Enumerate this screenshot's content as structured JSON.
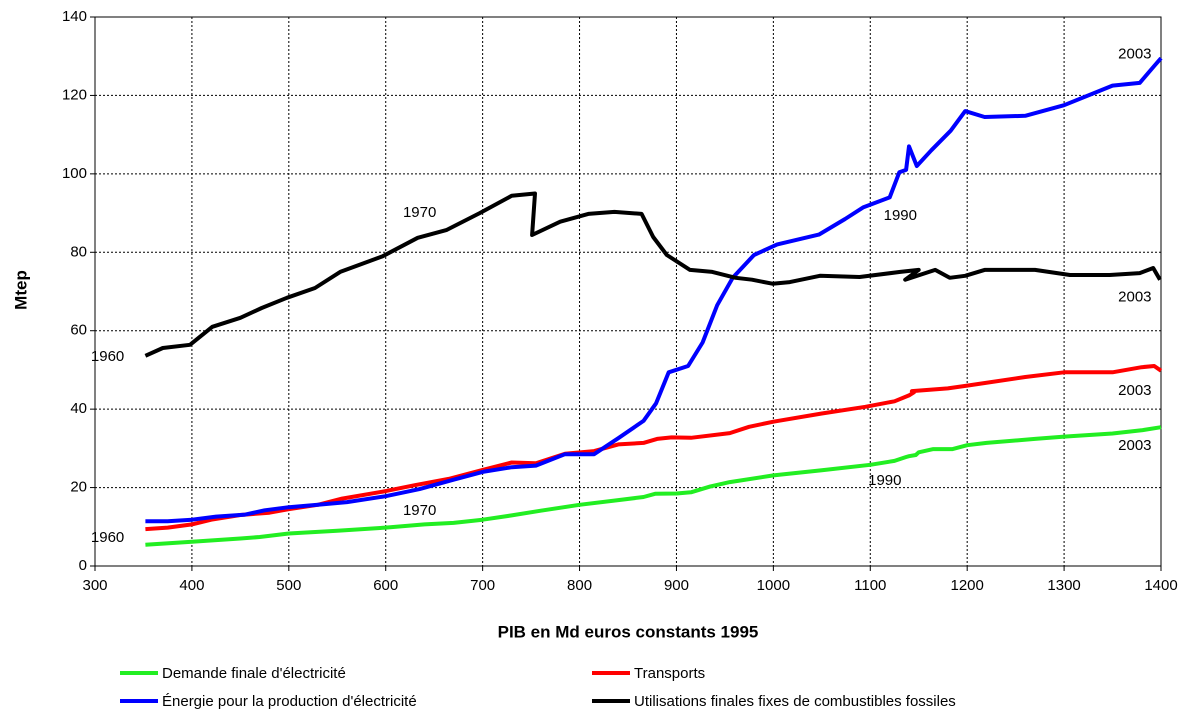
{
  "chart_data": {
    "type": "line",
    "xlabel": "PIB en Md euros constants 1995",
    "ylabel": "Mtep",
    "xlim": [
      300,
      1400
    ],
    "xticks": [
      300,
      400,
      500,
      600,
      700,
      800,
      900,
      1000,
      1100,
      1200,
      1300,
      1400
    ],
    "ylim": [
      0,
      140
    ],
    "yticks": [
      0,
      20,
      40,
      60,
      80,
      100,
      120,
      140
    ],
    "grid": true,
    "series": [
      {
        "name": "Demande finale d'électricité",
        "color": "#22ee22",
        "x": [
          352,
          400,
          450,
          470,
          500,
          550,
          600,
          640,
          670,
          700,
          730,
          760,
          800,
          840,
          866,
          878,
          900,
          915,
          935,
          955,
          1000,
          1050,
          1100,
          1125,
          1137,
          1140,
          1147,
          1150,
          1165,
          1185,
          1200,
          1220,
          1270,
          1300,
          1350,
          1380,
          1400
        ],
        "values": [
          5.4,
          6.2,
          7,
          7.4,
          8.3,
          9,
          9.8,
          10.6,
          11,
          11.8,
          12.9,
          14.1,
          15.6,
          16.8,
          17.6,
          18.4,
          18.5,
          18.8,
          20.3,
          21.4,
          23.1,
          24.4,
          25.8,
          26.8,
          27.8,
          28,
          28.3,
          29,
          29.8,
          29.8,
          30.8,
          31.4,
          32.4,
          33,
          33.8,
          34.6,
          35.4
        ]
      },
      {
        "name": "Transports",
        "color": "#ff0000",
        "x": [
          352,
          375,
          400,
          420,
          450,
          480,
          500,
          530,
          555,
          600,
          630,
          665,
          700,
          730,
          755,
          785,
          815,
          840,
          866,
          880,
          895,
          915,
          955,
          975,
          1000,
          1050,
          1095,
          1125,
          1140,
          1145,
          1143,
          1180,
          1200,
          1260,
          1300,
          1350,
          1380,
          1393,
          1400
        ],
        "values": [
          9.4,
          9.8,
          10.6,
          11.8,
          13,
          13.6,
          14.5,
          15.6,
          17.2,
          19.1,
          20.6,
          22.2,
          24.5,
          26.4,
          26.2,
          28.6,
          29.3,
          31,
          31.4,
          32.4,
          32.8,
          32.7,
          33.9,
          35.5,
          36.8,
          38.9,
          40.6,
          42,
          43.5,
          44.3,
          44.6,
          45.3,
          46,
          48.2,
          49.4,
          49.4,
          50.7,
          51,
          49.8
        ]
      },
      {
        "name": "Énergie pour la production d'électricité",
        "color": "#0000ff",
        "x": [
          352,
          375,
          400,
          425,
          455,
          475,
          500,
          530,
          560,
          600,
          635,
          670,
          700,
          730,
          755,
          785,
          815,
          840,
          866,
          879,
          892,
          912,
          927,
          942,
          958,
          980,
          1004,
          1047,
          1074,
          1093,
          1120,
          1130,
          1137,
          1140,
          1148,
          1163,
          1183,
          1198,
          1218,
          1260,
          1300,
          1350,
          1378,
          1393,
          1400
        ],
        "values": [
          11.4,
          11.4,
          11.8,
          12.6,
          13.1,
          14.2,
          15,
          15.6,
          16.3,
          17.8,
          19.6,
          22,
          24,
          25.2,
          25.6,
          28.5,
          28.5,
          32.6,
          37,
          41.5,
          49.4,
          51,
          57,
          66.5,
          73.5,
          79.3,
          82,
          84.5,
          88.5,
          91.5,
          94,
          100.4,
          101,
          107,
          102,
          106,
          111,
          116,
          114.5,
          114.8,
          117.5,
          122.5,
          123.2,
          127.5,
          129.5
        ]
      },
      {
        "name": "Utilisations finales fixes de combustibles fossiles",
        "color": "#000000",
        "x": [
          352,
          370,
          398,
          421,
          450,
          472,
          498,
          527,
          553,
          597,
          633,
          663,
          697,
          730,
          754,
          751,
          780,
          809,
          836,
          864,
          876,
          890,
          914,
          937,
          961,
          978,
          999,
          1017,
          1048,
          1089,
          1131,
          1150,
          1136,
          1167,
          1182,
          1198,
          1218,
          1270,
          1306,
          1347,
          1378,
          1392,
          1399
        ],
        "values": [
          53.6,
          55.6,
          56.4,
          61,
          63.3,
          65.8,
          68.4,
          70.9,
          75,
          79,
          83.7,
          85.7,
          90,
          94.4,
          95,
          84.4,
          87.8,
          89.8,
          90.3,
          89.8,
          83.9,
          79.3,
          75.5,
          75,
          73.5,
          73,
          72,
          72.4,
          74,
          73.7,
          75,
          75.5,
          73,
          75.5,
          73.5,
          74,
          75.5,
          75.5,
          74.2,
          74.2,
          74.7,
          76,
          73
        ]
      }
    ],
    "annotations": [
      {
        "text": "1960",
        "x": 313,
        "y": 53.3
      },
      {
        "text": "1970",
        "x": 635,
        "y": 90
      },
      {
        "text": "1990",
        "x": 1131,
        "y": 89.3
      },
      {
        "text": "2003",
        "x": 1373,
        "y": 130.4
      },
      {
        "text": "2003",
        "x": 1373,
        "y": 68.4
      },
      {
        "text": "2003",
        "x": 1373,
        "y": 44.6
      },
      {
        "text": "2003",
        "x": 1373,
        "y": 30.6
      },
      {
        "text": "1960",
        "x": 313,
        "y": 7.1
      },
      {
        "text": "1970",
        "x": 635,
        "y": 14
      },
      {
        "text": "1990",
        "x": 1115,
        "y": 21.7
      }
    ]
  }
}
